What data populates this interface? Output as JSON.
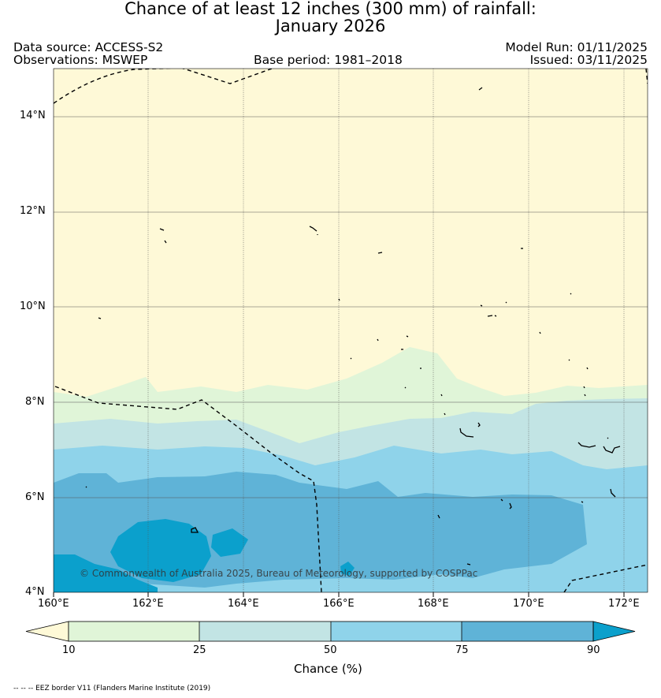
{
  "title": {
    "line1": "Chance of at least 12 inches (300  mm) of rainfall:",
    "line2": "January 2026"
  },
  "meta": {
    "data_source": "Data source: ACCESS-S2",
    "observations": "Observations: MSWEP",
    "base_period": "Base period: 1981–2018",
    "model_run": "Model Run: 01/11/2025",
    "issued": "Issued: 03/11/2025"
  },
  "map": {
    "lon_range": [
      160,
      172.5
    ],
    "lat_range": [
      4,
      15
    ],
    "lat_ticks": [
      {
        "value": 14,
        "label": "14°N"
      },
      {
        "value": 12,
        "label": "12°N"
      },
      {
        "value": 10,
        "label": "10°N"
      },
      {
        "value": 8,
        "label": "8°N"
      },
      {
        "value": 6,
        "label": "6°N"
      },
      {
        "value": 4,
        "label": "4°N"
      }
    ],
    "lon_ticks": [
      {
        "value": 160,
        "label": "160°E"
      },
      {
        "value": 162,
        "label": "162°E"
      },
      {
        "value": 164,
        "label": "164°E"
      },
      {
        "value": 166,
        "label": "166°E"
      },
      {
        "value": 168,
        "label": "168°E"
      },
      {
        "value": 170,
        "label": "170°E"
      },
      {
        "value": 172,
        "label": "172°E"
      }
    ],
    "copyright": "© Commonwealth of Australia 2025, Bureau of Meteorology, supported by COSPPac"
  },
  "colorbar": {
    "ticks": [
      "10",
      "25",
      "50",
      "75",
      "90"
    ],
    "label": "Chance (%)",
    "colors": {
      "below_10": "#fef9d7",
      "10_25": "#e0f5d8",
      "25_50": "#c2e4e4",
      "50_75": "#8fd3ea",
      "75_90": "#5fb3d7",
      "above_90": "#0ba0cc"
    }
  },
  "footnote": "-- -- -- EEZ border V11 (Flanders Marine Institute (2019)"
}
